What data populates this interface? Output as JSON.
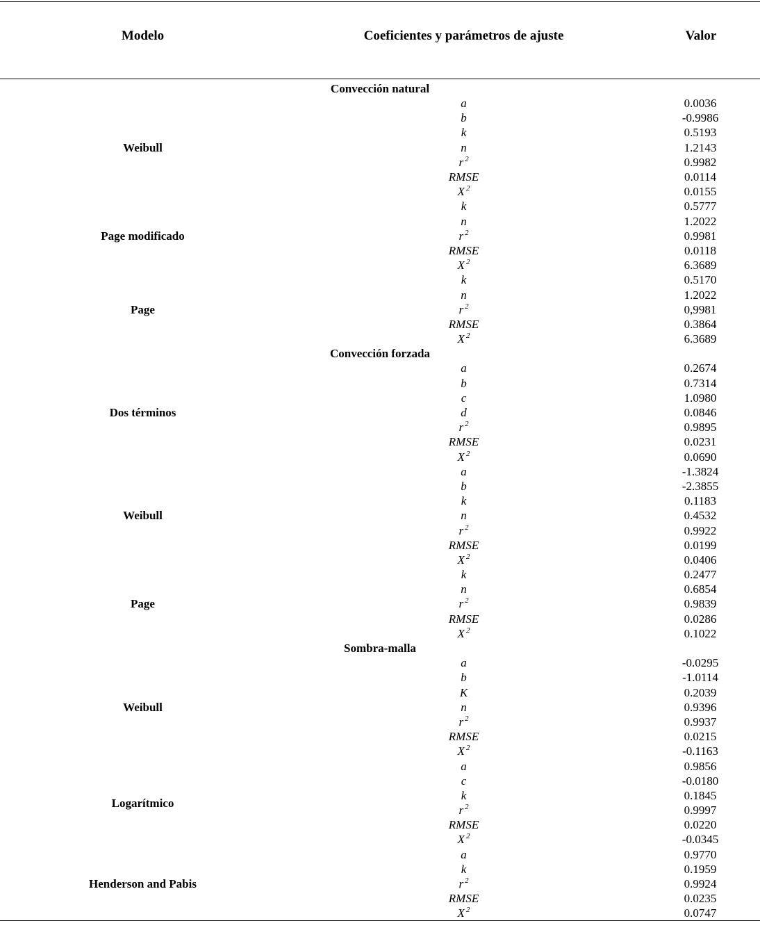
{
  "header": {
    "model": "Modelo",
    "params": "Coeficientes y parámetros de ajuste",
    "value": "Valor"
  },
  "sections": [
    {
      "title": "Convección natural",
      "models": [
        {
          "name": "Weibull",
          "rows": [
            [
              "a",
              "0.0036"
            ],
            [
              "b",
              "-0.9986"
            ],
            [
              "k",
              "0.5193"
            ],
            [
              "n",
              "1.2143"
            ],
            [
              "r²",
              "0.9982"
            ],
            [
              "RMSE",
              "0.0114"
            ],
            [
              "X²",
              "0.0155"
            ]
          ]
        },
        {
          "name": "Page modificado",
          "rows": [
            [
              "k",
              "0.5777"
            ],
            [
              "n",
              "1.2022"
            ],
            [
              "r²",
              "0.9981"
            ],
            [
              "RMSE",
              "0.0118"
            ],
            [
              "X²",
              "6.3689"
            ]
          ]
        },
        {
          "name": "Page",
          "rows": [
            [
              "k",
              "0.5170"
            ],
            [
              "n",
              "1.2022"
            ],
            [
              "r²",
              "0,9981"
            ],
            [
              "RMSE",
              "0.3864"
            ],
            [
              "X²",
              "6.3689"
            ]
          ]
        }
      ]
    },
    {
      "title": "Convección forzada",
      "models": [
        {
          "name": "Dos términos",
          "rows": [
            [
              "a",
              "0.2674"
            ],
            [
              "b",
              "0.7314"
            ],
            [
              "c",
              "1.0980"
            ],
            [
              "d",
              "0.0846"
            ],
            [
              "r²",
              "0.9895"
            ],
            [
              "RMSE",
              "0.0231"
            ],
            [
              "X²",
              "0.0690"
            ]
          ]
        },
        {
          "name": "Weibull",
          "rows": [
            [
              "a",
              "-1.3824"
            ],
            [
              "b",
              "-2.3855"
            ],
            [
              "k",
              "0.1183"
            ],
            [
              "n",
              "0.4532"
            ],
            [
              "r²",
              "0.9922"
            ],
            [
              "RMSE",
              "0.0199"
            ],
            [
              "X²",
              "0.0406"
            ]
          ]
        },
        {
          "name": "Page",
          "rows": [
            [
              "k",
              "0.2477"
            ],
            [
              "n",
              "0.6854"
            ],
            [
              "r²",
              "0.9839"
            ],
            [
              "RMSE",
              "0.0286"
            ],
            [
              "X²",
              "0.1022"
            ]
          ]
        }
      ]
    },
    {
      "title": "Sombra-malla",
      "models": [
        {
          "name": "Weibull",
          "rows": [
            [
              "a",
              "-0.0295"
            ],
            [
              "b",
              "-1.0114"
            ],
            [
              "K",
              "0.2039"
            ],
            [
              "n",
              "0.9396"
            ],
            [
              "r²",
              "0.9937"
            ],
            [
              "RMSE",
              "0.0215"
            ],
            [
              "X²",
              "-0.1163"
            ]
          ]
        },
        {
          "name": "Logarítmico",
          "rows": [
            [
              "a",
              "0.9856"
            ],
            [
              "c",
              "-0.0180"
            ],
            [
              "k",
              "0.1845"
            ],
            [
              "r²",
              "0.9997"
            ],
            [
              "RMSE",
              "0.0220"
            ],
            [
              "X²",
              "-0.0345"
            ]
          ]
        },
        {
          "name": "Henderson and Pabis",
          "rows": [
            [
              "a",
              "0.9770"
            ],
            [
              "k",
              "0.1959"
            ],
            [
              "r²",
              "0.9924"
            ],
            [
              "RMSE",
              "0.0235"
            ],
            [
              "X²",
              "0.0747"
            ]
          ]
        }
      ]
    }
  ]
}
